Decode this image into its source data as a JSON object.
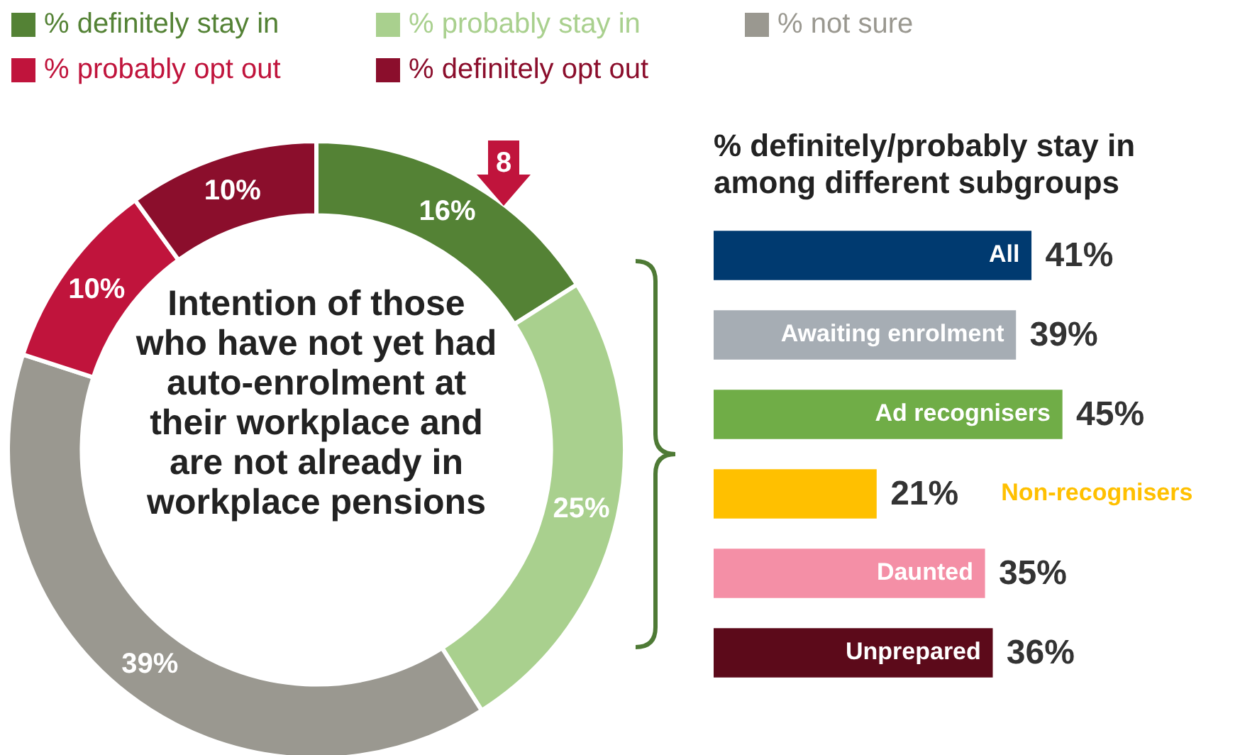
{
  "chart_data": [
    {
      "type": "donut",
      "title": "Intention of those who have not yet had auto-enrolment at their workplace and are not already in workplace pensions",
      "categories": [
        "% definitely stay in",
        "% probably stay in",
        "% not sure",
        "% probably opt out",
        "% definitely opt out"
      ],
      "values": [
        16,
        25,
        39,
        10,
        10
      ],
      "colors": [
        "#548235",
        "#a9d08e",
        "#9a9890",
        "#c0143c",
        "#8b0e2c"
      ],
      "value_labels": [
        "16%",
        "25%",
        "39%",
        "10%",
        "10%"
      ],
      "legend": "top",
      "annotations": [
        "8"
      ]
    },
    {
      "type": "bar",
      "orientation": "horizontal",
      "title": "% definitely/probably stay in among different subgroups",
      "categories": [
        "All",
        "Awaiting enrolment",
        "Ad recognisers",
        "Non-recognisers",
        "Daunted",
        "Unprepared"
      ],
      "values": [
        41,
        39,
        45,
        21,
        35,
        36
      ],
      "colors": [
        "#003a70",
        "#a6adb4",
        "#70ad47",
        "#ffc000",
        "#f48fa6",
        "#5c0a1a"
      ],
      "value_labels": [
        "41%",
        "39%",
        "45%",
        "21%",
        "35%",
        "36%"
      ],
      "xlim": [
        0,
        68
      ],
      "tick_labels": false
    }
  ]
}
